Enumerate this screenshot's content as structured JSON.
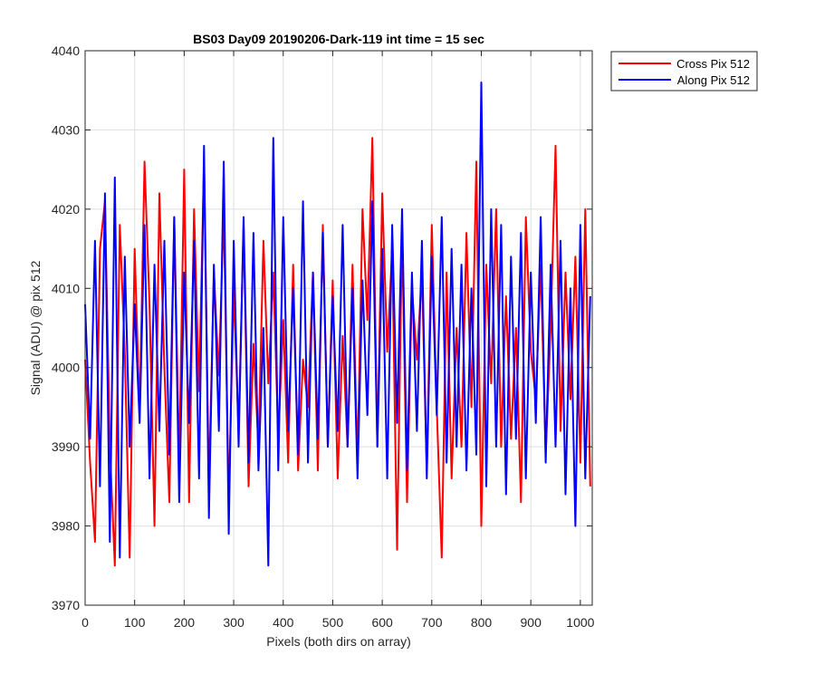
{
  "chart_data": {
    "type": "line",
    "title": "BS03 Day09 20190206-Dark-119 int time = 15 sec",
    "xlabel": "Pixels (both dirs on array)",
    "ylabel": "Signal (ADU) @ pix 512",
    "xlim": [
      0,
      1024
    ],
    "ylim": [
      3970,
      4040
    ],
    "xticks": [
      0,
      100,
      200,
      300,
      400,
      500,
      600,
      700,
      800,
      900,
      1000
    ],
    "yticks": [
      3970,
      3980,
      3990,
      4000,
      4010,
      4020,
      4030,
      4040
    ],
    "grid": true,
    "legend_location": "outside-top-right",
    "series": [
      {
        "name": "Cross Pix 512",
        "color": "#ff0000",
        "x": [
          0,
          10,
          20,
          30,
          40,
          50,
          60,
          70,
          80,
          90,
          100,
          110,
          120,
          130,
          140,
          150,
          160,
          170,
          180,
          190,
          200,
          210,
          220,
          230,
          240,
          250,
          260,
          270,
          280,
          290,
          300,
          310,
          320,
          330,
          340,
          350,
          360,
          370,
          380,
          390,
          400,
          410,
          420,
          430,
          440,
          450,
          460,
          470,
          480,
          490,
          500,
          510,
          520,
          530,
          540,
          550,
          560,
          570,
          580,
          590,
          600,
          610,
          620,
          630,
          640,
          650,
          660,
          670,
          680,
          690,
          700,
          710,
          720,
          730,
          740,
          750,
          760,
          770,
          780,
          790,
          800,
          810,
          820,
          830,
          840,
          850,
          860,
          870,
          880,
          890,
          900,
          910,
          920,
          930,
          940,
          950,
          960,
          970,
          980,
          990,
          1000,
          1010,
          1020
        ],
        "y": [
          4001,
          3988,
          3978,
          4015,
          4021,
          3990,
          3975,
          4018,
          4002,
          3976,
          4015,
          3994,
          4026,
          4008,
          3980,
          4022,
          4000,
          3983,
          4019,
          3988,
          4025,
          3983,
          4020,
          3997,
          4026,
          3985,
          4012,
          3999,
          4020,
          3983,
          4010,
          3992,
          4018,
          3985,
          4003,
          3990,
          4016,
          3998,
          4012,
          3991,
          4006,
          3988,
          4013,
          3987,
          4001,
          3995,
          4012,
          3987,
          4018,
          3990,
          4011,
          3986,
          4004,
          3990,
          4013,
          3988,
          4020,
          4006,
          4029,
          3990,
          4022,
          4002,
          4015,
          3977,
          4017,
          3983,
          4010,
          4001,
          4012,
          3987,
          4018,
          3995,
          3976,
          4012,
          3986,
          4005,
          3990,
          4017,
          3995,
          4026,
          3980,
          4013,
          3998,
          4020,
          3990,
          4009,
          3991,
          4005,
          3983,
          4019,
          4002,
          3996,
          4013,
          3989,
          4005,
          4028,
          3992,
          4012,
          3996,
          4014,
          3988,
          4020,
          3985
        ]
      },
      {
        "name": "Along Pix 512",
        "color": "#0000ff",
        "x": [
          0,
          10,
          20,
          30,
          40,
          50,
          60,
          70,
          80,
          90,
          100,
          110,
          120,
          130,
          140,
          150,
          160,
          170,
          180,
          190,
          200,
          210,
          220,
          230,
          240,
          250,
          260,
          270,
          280,
          290,
          300,
          310,
          320,
          330,
          340,
          350,
          360,
          370,
          380,
          390,
          400,
          410,
          420,
          430,
          440,
          450,
          460,
          470,
          480,
          490,
          500,
          510,
          520,
          530,
          540,
          550,
          560,
          570,
          580,
          590,
          600,
          610,
          620,
          630,
          640,
          650,
          660,
          670,
          680,
          690,
          700,
          710,
          720,
          730,
          740,
          750,
          760,
          770,
          780,
          790,
          800,
          810,
          820,
          830,
          840,
          850,
          860,
          870,
          880,
          890,
          900,
          910,
          920,
          930,
          940,
          950,
          960,
          970,
          980,
          990,
          1000,
          1010,
          1020
        ],
        "y": [
          4008,
          3991,
          4016,
          3985,
          4022,
          3978,
          4024,
          3976,
          4014,
          3990,
          4008,
          3993,
          4018,
          3986,
          4013,
          3992,
          4016,
          3989,
          4019,
          3983,
          4012,
          3993,
          4016,
          3986,
          4028,
          3981,
          4013,
          3992,
          4026,
          3979,
          4016,
          3990,
          4019,
          3988,
          4017,
          3987,
          4005,
          3975,
          4029,
          3987,
          4019,
          3992,
          4010,
          3989,
          4021,
          3988,
          4012,
          3991,
          4017,
          3990,
          4009,
          3992,
          4018,
          3990,
          4010,
          3986,
          4011,
          3994,
          4021,
          3990,
          4015,
          3986,
          4018,
          3993,
          4020,
          3987,
          4012,
          3992,
          4016,
          3986,
          4014,
          3994,
          4019,
          3988,
          4015,
          3990,
          4013,
          3987,
          4010,
          3989,
          4036,
          3985,
          4020,
          3990,
          4018,
          3984,
          4014,
          3991,
          4017,
          3986,
          4012,
          3993,
          4019,
          3988,
          4013,
          3990,
          4016,
          3984,
          4010,
          3980,
          4018,
          3986,
          4009
        ]
      }
    ]
  }
}
